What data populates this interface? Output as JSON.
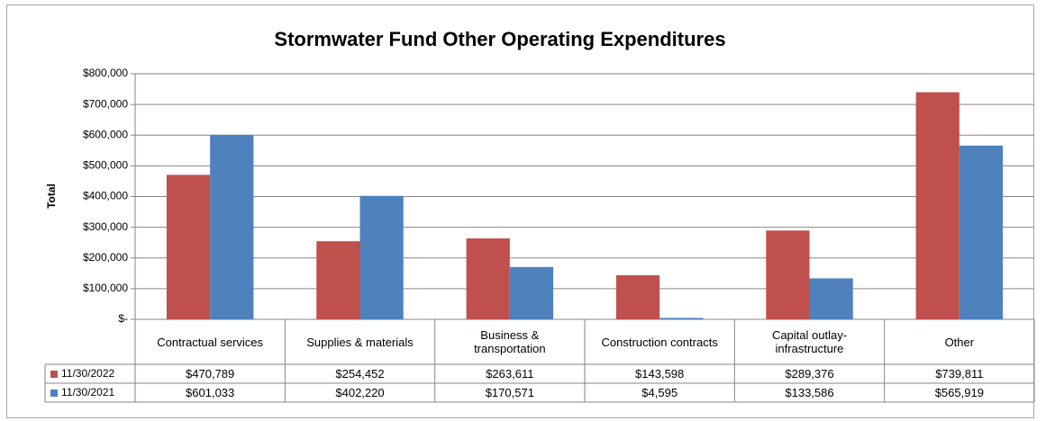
{
  "chart_data": {
    "type": "bar",
    "title": "Stormwater Fund Other Operating Expenditures",
    "y_label": "Total",
    "categories": [
      "Contractual services",
      "Supplies & materials",
      "Business & transportation",
      "Construction contracts",
      "Capital outlay-infrastructure",
      "Other"
    ],
    "series": [
      {
        "name": "11/30/2022",
        "color": "#c0504d",
        "values": [
          470789,
          254452,
          263611,
          143598,
          289376,
          739811
        ],
        "value_labels": [
          "$470,789",
          "$254,452",
          "$263,611",
          "$143,598",
          "$289,376",
          "$739,811"
        ]
      },
      {
        "name": "11/30/2021",
        "color": "#4f81bd",
        "values": [
          601033,
          402220,
          170571,
          4595,
          133586,
          565919
        ],
        "value_labels": [
          "$601,033",
          "$402,220",
          "$170,571",
          "$4,595",
          "$133,586",
          "$565,919"
        ]
      }
    ],
    "ylim": [
      0,
      800000
    ],
    "yticks": [
      {
        "value": 0,
        "label": "$-"
      },
      {
        "value": 100000,
        "label": "$100,000"
      },
      {
        "value": 200000,
        "label": "$200,000"
      },
      {
        "value": 300000,
        "label": "$300,000"
      },
      {
        "value": 400000,
        "label": "$400,000"
      },
      {
        "value": 500000,
        "label": "$500,000"
      },
      {
        "value": 600000,
        "label": "$600,000"
      },
      {
        "value": 700000,
        "label": "$700,000"
      },
      {
        "value": 800000,
        "label": "$800,000"
      }
    ],
    "grid": true
  }
}
